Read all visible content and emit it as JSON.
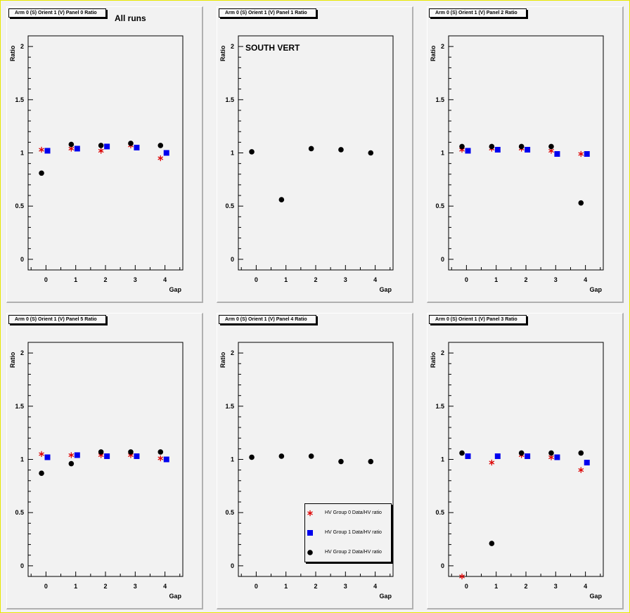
{
  "colors": {
    "canvas_border": "#e8e800",
    "pad_background": "#f2f2f2",
    "group0": "#dd0000",
    "group1": "#0000ee",
    "group2": "#000000"
  },
  "series_styles": [
    {
      "marker": "star",
      "color": "#dd0000"
    },
    {
      "marker": "square",
      "color": "#0000ee"
    },
    {
      "marker": "circle",
      "color": "#000000"
    }
  ],
  "legend": {
    "items": [
      "HV Group 0 Data/HV ratio",
      "HV Group 1 Data/HV ratio",
      "HV Group 2 Data/HV ratio"
    ]
  },
  "chart_data": [
    {
      "type": "scatter",
      "title": "Arm 0 (S) Orient 1 (V) Panel 0 Ratio",
      "annotation": "All runs",
      "xlabel": "Gap",
      "ylabel": "Ratio",
      "xlim": [
        -0.6,
        4.6
      ],
      "ylim": [
        -0.1,
        2.1
      ],
      "xticks": [
        0,
        1,
        2,
        3,
        4
      ],
      "yticks": [
        0,
        0.5,
        1,
        1.5,
        2
      ],
      "series": [
        {
          "x": [
            0,
            1,
            2,
            3,
            4
          ],
          "y": [
            1.03,
            1.04,
            1.02,
            1.07,
            0.95
          ]
        },
        {
          "x": [
            0,
            1,
            2,
            3,
            4
          ],
          "y": [
            1.02,
            1.04,
            1.06,
            1.05,
            1.0
          ]
        },
        {
          "x": [
            0,
            1,
            2,
            3,
            4
          ],
          "y": [
            0.81,
            1.08,
            1.07,
            1.09,
            1.07
          ]
        }
      ]
    },
    {
      "type": "scatter",
      "title": "Arm 0 (S) Orient 1 (V) Panel 1 Ratio",
      "annotation": "SOUTH VERT",
      "xlabel": "Gap",
      "ylabel": "Ratio",
      "xlim": [
        -0.6,
        4.6
      ],
      "ylim": [
        -0.1,
        2.1
      ],
      "xticks": [
        0,
        1,
        2,
        3,
        4
      ],
      "yticks": [
        0,
        0.5,
        1,
        1.5,
        2
      ],
      "series": [
        {
          "x": [],
          "y": []
        },
        {
          "x": [],
          "y": []
        },
        {
          "x": [
            0,
            1,
            2,
            3,
            4
          ],
          "y": [
            1.01,
            0.56,
            1.04,
            1.03,
            1.0
          ]
        }
      ]
    },
    {
      "type": "scatter",
      "title": "Arm 0 (S) Orient 1 (V) Panel 2 Ratio",
      "annotation": "",
      "xlabel": "Gap",
      "ylabel": "Ratio",
      "xlim": [
        -0.6,
        4.6
      ],
      "ylim": [
        -0.1,
        2.1
      ],
      "xticks": [
        0,
        1,
        2,
        3,
        4
      ],
      "yticks": [
        0,
        0.5,
        1,
        1.5,
        2
      ],
      "series": [
        {
          "x": [
            0,
            1,
            2,
            3,
            4
          ],
          "y": [
            1.03,
            1.04,
            1.04,
            1.02,
            0.99
          ]
        },
        {
          "x": [
            0,
            1,
            2,
            3,
            4
          ],
          "y": [
            1.02,
            1.03,
            1.03,
            0.99,
            0.99
          ]
        },
        {
          "x": [
            0,
            1,
            2,
            3,
            4
          ],
          "y": [
            1.06,
            1.06,
            1.06,
            1.06,
            0.53
          ]
        }
      ]
    },
    {
      "type": "scatter",
      "title": "Arm 0 (S) Orient 1 (V) Panel 5 Ratio",
      "annotation": "",
      "xlabel": "Gap",
      "ylabel": "Ratio",
      "xlim": [
        -0.6,
        4.6
      ],
      "ylim": [
        -0.1,
        2.1
      ],
      "xticks": [
        0,
        1,
        2,
        3,
        4
      ],
      "yticks": [
        0,
        0.5,
        1,
        1.5,
        2
      ],
      "series": [
        {
          "x": [
            0,
            1,
            2,
            3,
            4
          ],
          "y": [
            1.05,
            1.04,
            1.04,
            1.04,
            1.01
          ]
        },
        {
          "x": [
            0,
            1,
            2,
            3,
            4
          ],
          "y": [
            1.02,
            1.04,
            1.03,
            1.03,
            1.0
          ]
        },
        {
          "x": [
            0,
            1,
            2,
            3,
            4
          ],
          "y": [
            0.87,
            0.96,
            1.07,
            1.07,
            1.07
          ]
        }
      ]
    },
    {
      "type": "scatter",
      "title": "Arm 0 (S) Orient 1 (V) Panel 4 Ratio",
      "annotation": "",
      "xlabel": "Gap",
      "ylabel": "Ratio",
      "xlim": [
        -0.6,
        4.6
      ],
      "ylim": [
        -0.1,
        2.1
      ],
      "xticks": [
        0,
        1,
        2,
        3,
        4
      ],
      "yticks": [
        0,
        0.5,
        1,
        1.5,
        2
      ],
      "legend_position": "bottom-right",
      "series": [
        {
          "x": [],
          "y": []
        },
        {
          "x": [],
          "y": []
        },
        {
          "x": [
            0,
            1,
            2,
            3,
            4
          ],
          "y": [
            1.02,
            1.03,
            1.03,
            0.98,
            0.98
          ]
        }
      ]
    },
    {
      "type": "scatter",
      "title": "Arm 0 (S) Orient 1 (V) Panel 3 Ratio",
      "annotation": "",
      "xlabel": "Gap",
      "ylabel": "Ratio",
      "xlim": [
        -0.6,
        4.6
      ],
      "ylim": [
        -0.1,
        2.1
      ],
      "xticks": [
        0,
        1,
        2,
        3,
        4
      ],
      "yticks": [
        0,
        0.5,
        1,
        1.5,
        2
      ],
      "series": [
        {
          "x": [
            0,
            1,
            2,
            3,
            4
          ],
          "y": [
            -0.1,
            0.97,
            1.04,
            1.02,
            0.9
          ]
        },
        {
          "x": [
            0,
            1,
            2,
            3,
            4
          ],
          "y": [
            1.03,
            1.03,
            1.03,
            1.02,
            0.97
          ]
        },
        {
          "x": [
            0,
            1,
            2,
            3,
            4
          ],
          "y": [
            1.06,
            0.21,
            1.06,
            1.06,
            1.06
          ]
        }
      ]
    }
  ]
}
